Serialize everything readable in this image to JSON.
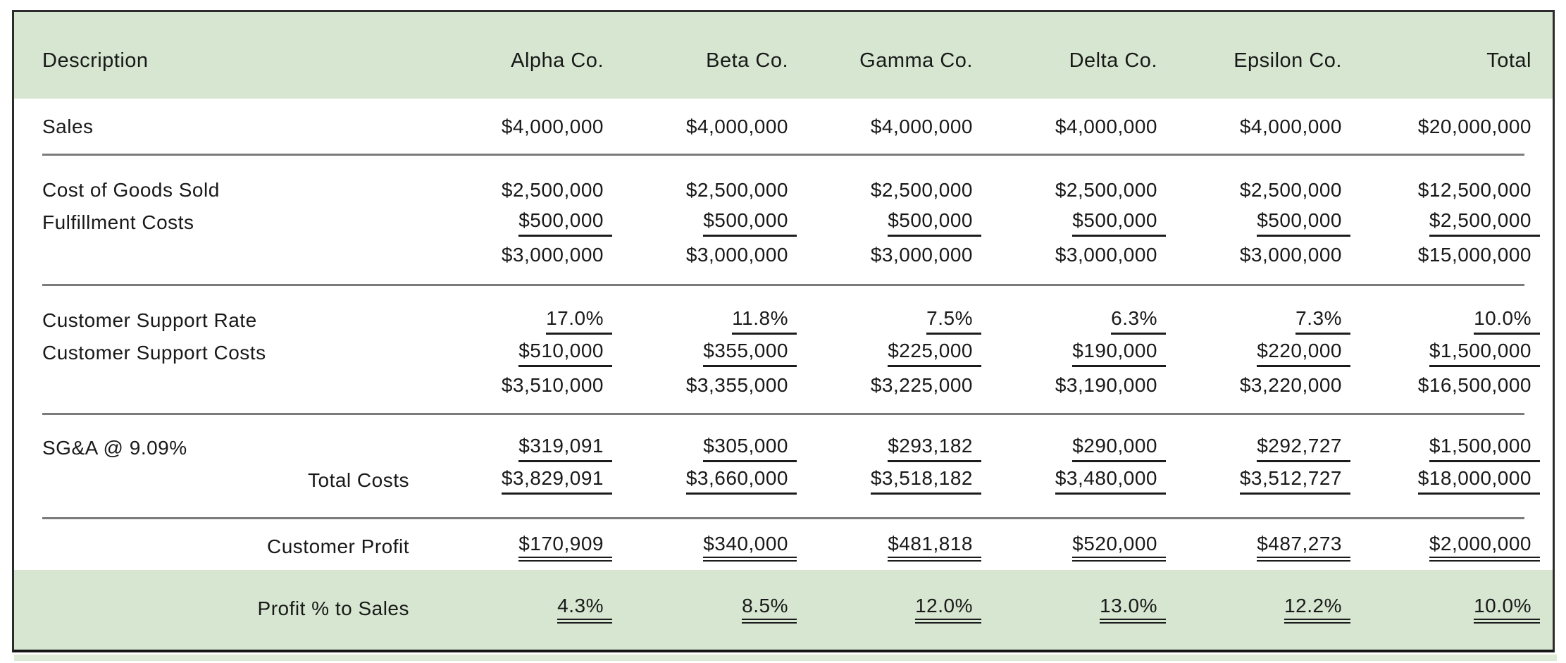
{
  "colors": {
    "band_green": "#d6e6d0",
    "sliver_green": "#dcead6",
    "separator_gray": "#7b7b7b",
    "outer_border": "#2b2b2b",
    "text": "#191919"
  },
  "header": {
    "columns": [
      "Description",
      "Alpha Co.",
      "Beta Co.",
      "Gamma Co.",
      "Delta Co.",
      "Epsilon Co.",
      "Total"
    ]
  },
  "rows": [
    {
      "label": "Sales",
      "values": [
        "$4,000,000",
        "$4,000,000",
        "$4,000,000",
        "$4,000,000",
        "$4,000,000",
        "$20,000,000"
      ]
    },
    {
      "label": "Cost of Goods Sold",
      "values": [
        "$2,500,000",
        "$2,500,000",
        "$2,500,000",
        "$2,500,000",
        "$2,500,000",
        "$12,500,000"
      ]
    },
    {
      "label": "Fulfillment Costs",
      "values": [
        "$500,000",
        "$500,000",
        "$500,000",
        "$500,000",
        "$500,000",
        "$2,500,000"
      ]
    },
    {
      "label": "",
      "values": [
        "$3,000,000",
        "$3,000,000",
        "$3,000,000",
        "$3,000,000",
        "$3,000,000",
        "$15,000,000"
      ]
    },
    {
      "label": "Customer Support Rate",
      "values": [
        "17.0%",
        "11.8%",
        "7.5%",
        "6.3%",
        "7.3%",
        "10.0%"
      ]
    },
    {
      "label": "Customer Support Costs",
      "values": [
        "$510,000",
        "$355,000",
        "$225,000",
        "$190,000",
        "$220,000",
        "$1,500,000"
      ]
    },
    {
      "label": "",
      "values": [
        "$3,510,000",
        "$3,355,000",
        "$3,225,000",
        "$3,190,000",
        "$3,220,000",
        "$16,500,000"
      ]
    },
    {
      "label": "SG&A @ 9.09%",
      "values": [
        "$319,091",
        "$305,000",
        "$293,182",
        "$290,000",
        "$292,727",
        "$1,500,000"
      ]
    },
    {
      "label": "Total Costs",
      "values": [
        "$3,829,091",
        "$3,660,000",
        "$3,518,182",
        "$3,480,000",
        "$3,512,727",
        "$18,000,000"
      ]
    },
    {
      "label": "Customer Profit",
      "values": [
        "$170,909",
        "$340,000",
        "$481,818",
        "$520,000",
        "$487,273",
        "$2,000,000"
      ]
    },
    {
      "label": "Profit % to Sales",
      "values": [
        "4.3%",
        "8.5%",
        "12.0%",
        "13.0%",
        "12.2%",
        "10.0%"
      ]
    }
  ]
}
